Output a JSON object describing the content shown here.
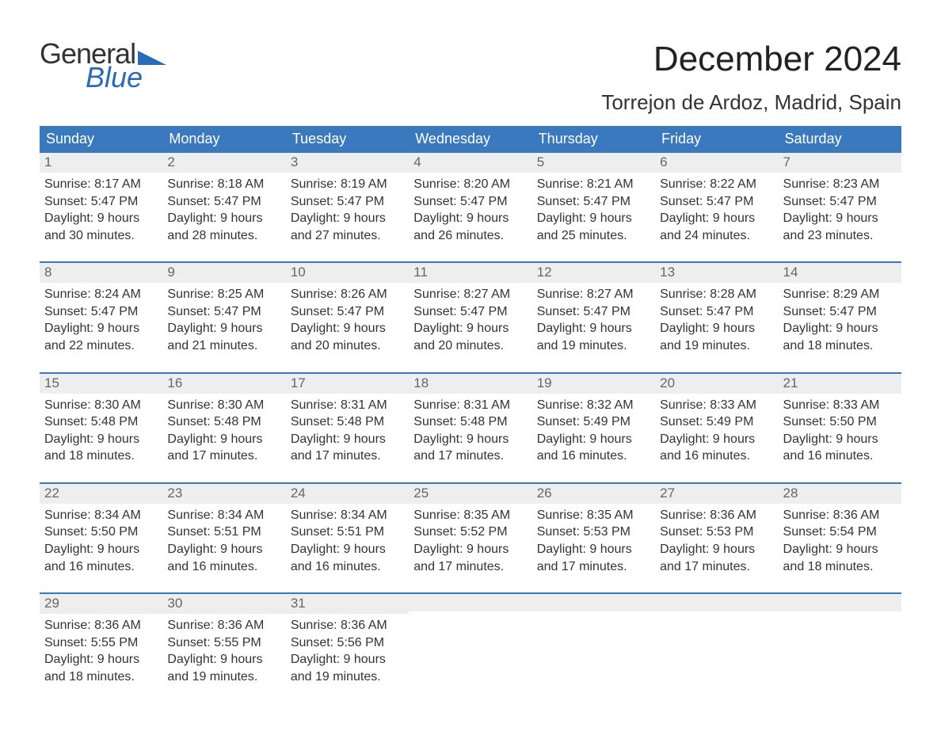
{
  "brand": {
    "word1": "General",
    "word2": "Blue"
  },
  "title": "December 2024",
  "location": "Torrejon de Ardoz, Madrid, Spain",
  "colors": {
    "header_bg": "#3a79bd",
    "header_text": "#ffffff",
    "daynum_bg": "#eeeeee",
    "daynum_text": "#666666",
    "body_text": "#333333",
    "rule": "#3a79bd",
    "logo_blue": "#2a6bb5"
  },
  "typography": {
    "title_fontsize": 44,
    "location_fontsize": 26,
    "weekday_fontsize": 18,
    "body_fontsize": 16
  },
  "weekdays": [
    "Sunday",
    "Monday",
    "Tuesday",
    "Wednesday",
    "Thursday",
    "Friday",
    "Saturday"
  ],
  "weeks": [
    [
      {
        "n": "1",
        "sunrise": "Sunrise: 8:17 AM",
        "sunset": "Sunset: 5:47 PM",
        "d1": "Daylight: 9 hours",
        "d2": "and 30 minutes."
      },
      {
        "n": "2",
        "sunrise": "Sunrise: 8:18 AM",
        "sunset": "Sunset: 5:47 PM",
        "d1": "Daylight: 9 hours",
        "d2": "and 28 minutes."
      },
      {
        "n": "3",
        "sunrise": "Sunrise: 8:19 AM",
        "sunset": "Sunset: 5:47 PM",
        "d1": "Daylight: 9 hours",
        "d2": "and 27 minutes."
      },
      {
        "n": "4",
        "sunrise": "Sunrise: 8:20 AM",
        "sunset": "Sunset: 5:47 PM",
        "d1": "Daylight: 9 hours",
        "d2": "and 26 minutes."
      },
      {
        "n": "5",
        "sunrise": "Sunrise: 8:21 AM",
        "sunset": "Sunset: 5:47 PM",
        "d1": "Daylight: 9 hours",
        "d2": "and 25 minutes."
      },
      {
        "n": "6",
        "sunrise": "Sunrise: 8:22 AM",
        "sunset": "Sunset: 5:47 PM",
        "d1": "Daylight: 9 hours",
        "d2": "and 24 minutes."
      },
      {
        "n": "7",
        "sunrise": "Sunrise: 8:23 AM",
        "sunset": "Sunset: 5:47 PM",
        "d1": "Daylight: 9 hours",
        "d2": "and 23 minutes."
      }
    ],
    [
      {
        "n": "8",
        "sunrise": "Sunrise: 8:24 AM",
        "sunset": "Sunset: 5:47 PM",
        "d1": "Daylight: 9 hours",
        "d2": "and 22 minutes."
      },
      {
        "n": "9",
        "sunrise": "Sunrise: 8:25 AM",
        "sunset": "Sunset: 5:47 PM",
        "d1": "Daylight: 9 hours",
        "d2": "and 21 minutes."
      },
      {
        "n": "10",
        "sunrise": "Sunrise: 8:26 AM",
        "sunset": "Sunset: 5:47 PM",
        "d1": "Daylight: 9 hours",
        "d2": "and 20 minutes."
      },
      {
        "n": "11",
        "sunrise": "Sunrise: 8:27 AM",
        "sunset": "Sunset: 5:47 PM",
        "d1": "Daylight: 9 hours",
        "d2": "and 20 minutes."
      },
      {
        "n": "12",
        "sunrise": "Sunrise: 8:27 AM",
        "sunset": "Sunset: 5:47 PM",
        "d1": "Daylight: 9 hours",
        "d2": "and 19 minutes."
      },
      {
        "n": "13",
        "sunrise": "Sunrise: 8:28 AM",
        "sunset": "Sunset: 5:47 PM",
        "d1": "Daylight: 9 hours",
        "d2": "and 19 minutes."
      },
      {
        "n": "14",
        "sunrise": "Sunrise: 8:29 AM",
        "sunset": "Sunset: 5:47 PM",
        "d1": "Daylight: 9 hours",
        "d2": "and 18 minutes."
      }
    ],
    [
      {
        "n": "15",
        "sunrise": "Sunrise: 8:30 AM",
        "sunset": "Sunset: 5:48 PM",
        "d1": "Daylight: 9 hours",
        "d2": "and 18 minutes."
      },
      {
        "n": "16",
        "sunrise": "Sunrise: 8:30 AM",
        "sunset": "Sunset: 5:48 PM",
        "d1": "Daylight: 9 hours",
        "d2": "and 17 minutes."
      },
      {
        "n": "17",
        "sunrise": "Sunrise: 8:31 AM",
        "sunset": "Sunset: 5:48 PM",
        "d1": "Daylight: 9 hours",
        "d2": "and 17 minutes."
      },
      {
        "n": "18",
        "sunrise": "Sunrise: 8:31 AM",
        "sunset": "Sunset: 5:48 PM",
        "d1": "Daylight: 9 hours",
        "d2": "and 17 minutes."
      },
      {
        "n": "19",
        "sunrise": "Sunrise: 8:32 AM",
        "sunset": "Sunset: 5:49 PM",
        "d1": "Daylight: 9 hours",
        "d2": "and 16 minutes."
      },
      {
        "n": "20",
        "sunrise": "Sunrise: 8:33 AM",
        "sunset": "Sunset: 5:49 PM",
        "d1": "Daylight: 9 hours",
        "d2": "and 16 minutes."
      },
      {
        "n": "21",
        "sunrise": "Sunrise: 8:33 AM",
        "sunset": "Sunset: 5:50 PM",
        "d1": "Daylight: 9 hours",
        "d2": "and 16 minutes."
      }
    ],
    [
      {
        "n": "22",
        "sunrise": "Sunrise: 8:34 AM",
        "sunset": "Sunset: 5:50 PM",
        "d1": "Daylight: 9 hours",
        "d2": "and 16 minutes."
      },
      {
        "n": "23",
        "sunrise": "Sunrise: 8:34 AM",
        "sunset": "Sunset: 5:51 PM",
        "d1": "Daylight: 9 hours",
        "d2": "and 16 minutes."
      },
      {
        "n": "24",
        "sunrise": "Sunrise: 8:34 AM",
        "sunset": "Sunset: 5:51 PM",
        "d1": "Daylight: 9 hours",
        "d2": "and 16 minutes."
      },
      {
        "n": "25",
        "sunrise": "Sunrise: 8:35 AM",
        "sunset": "Sunset: 5:52 PM",
        "d1": "Daylight: 9 hours",
        "d2": "and 17 minutes."
      },
      {
        "n": "26",
        "sunrise": "Sunrise: 8:35 AM",
        "sunset": "Sunset: 5:53 PM",
        "d1": "Daylight: 9 hours",
        "d2": "and 17 minutes."
      },
      {
        "n": "27",
        "sunrise": "Sunrise: 8:36 AM",
        "sunset": "Sunset: 5:53 PM",
        "d1": "Daylight: 9 hours",
        "d2": "and 17 minutes."
      },
      {
        "n": "28",
        "sunrise": "Sunrise: 8:36 AM",
        "sunset": "Sunset: 5:54 PM",
        "d1": "Daylight: 9 hours",
        "d2": "and 18 minutes."
      }
    ],
    [
      {
        "n": "29",
        "sunrise": "Sunrise: 8:36 AM",
        "sunset": "Sunset: 5:55 PM",
        "d1": "Daylight: 9 hours",
        "d2": "and 18 minutes."
      },
      {
        "n": "30",
        "sunrise": "Sunrise: 8:36 AM",
        "sunset": "Sunset: 5:55 PM",
        "d1": "Daylight: 9 hours",
        "d2": "and 19 minutes."
      },
      {
        "n": "31",
        "sunrise": "Sunrise: 8:36 AM",
        "sunset": "Sunset: 5:56 PM",
        "d1": "Daylight: 9 hours",
        "d2": "and 19 minutes."
      },
      null,
      null,
      null,
      null
    ]
  ]
}
